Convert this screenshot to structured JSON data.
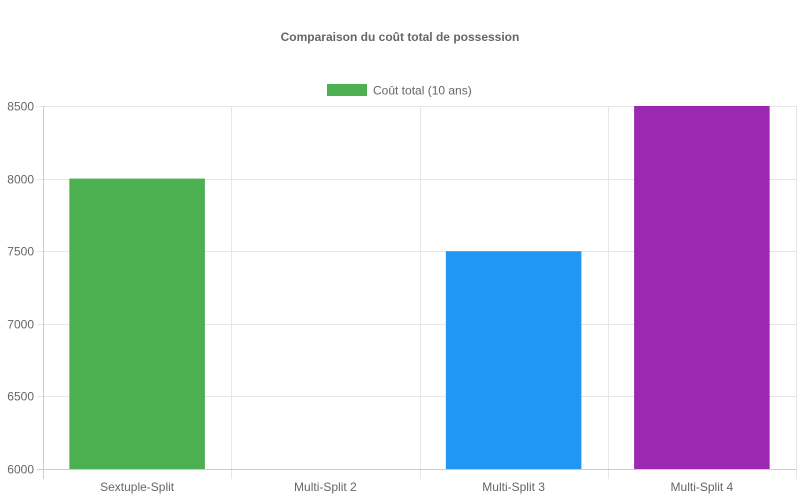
{
  "chart_data": {
    "type": "bar",
    "title": "Comparaison du coût total de possession",
    "categories": [
      "Sextuple-Split",
      "Multi-Split 2",
      "Multi-Split 3",
      "Multi-Split 4"
    ],
    "series": [
      {
        "name": "Coût total (10 ans)",
        "values": [
          8000,
          null,
          7500,
          8500
        ],
        "colors": [
          "#4caf50",
          "#4caf50",
          "#2196f3",
          "#9c27b0"
        ]
      }
    ],
    "legend_color": "#4caf50",
    "xlabel": "",
    "ylabel": "",
    "ylim": [
      6000,
      8500
    ],
    "yticks": [
      "8500",
      "8000",
      "7500",
      "7000",
      "6500",
      "6000"
    ],
    "grid": true,
    "legend_position": "top"
  }
}
